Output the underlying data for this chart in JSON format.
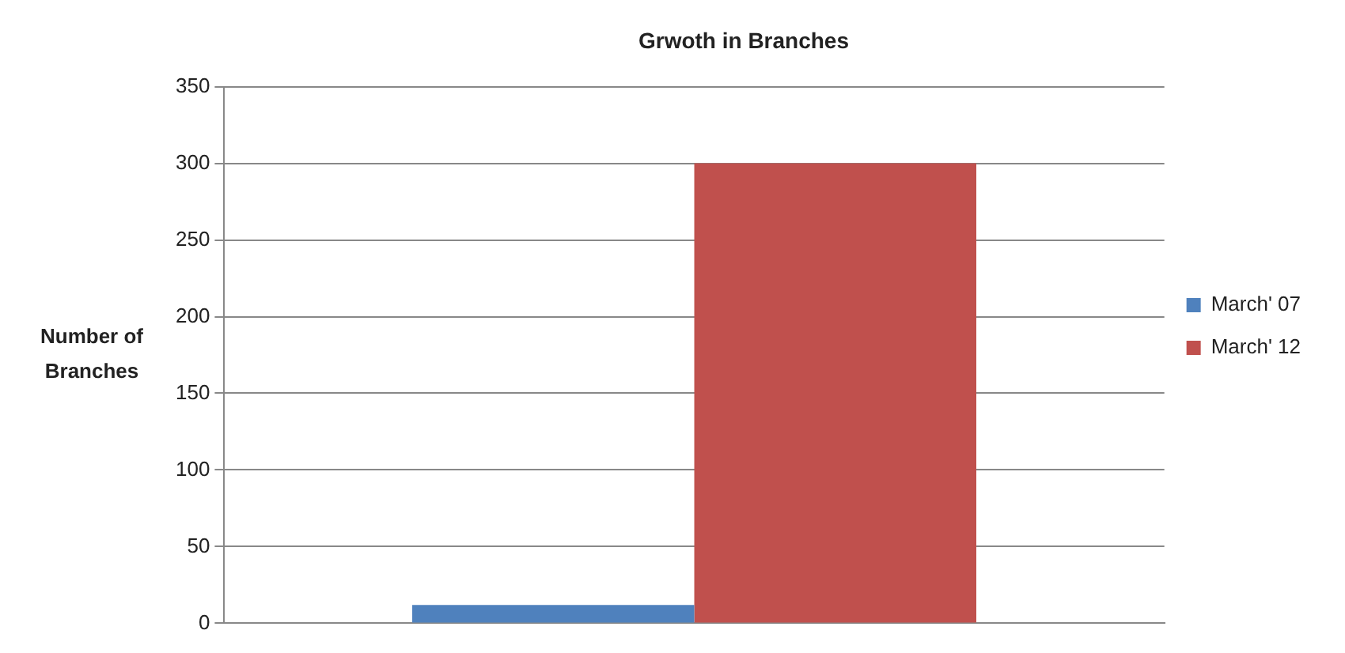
{
  "chart_data": {
    "type": "bar",
    "title": "Grwoth in Branches",
    "ylabel": "Number of Branches",
    "categories": [
      null
    ],
    "series": [
      {
        "name": "March' 07",
        "color": "#4f81bd",
        "values": [
          12
        ]
      },
      {
        "name": "March' 12",
        "color": "#c0504d",
        "values": [
          300
        ]
      }
    ],
    "ylim": [
      0,
      350
    ],
    "yticks": [
      0,
      50,
      100,
      150,
      200,
      250,
      300,
      350
    ],
    "grid": "y",
    "legend": "right"
  }
}
